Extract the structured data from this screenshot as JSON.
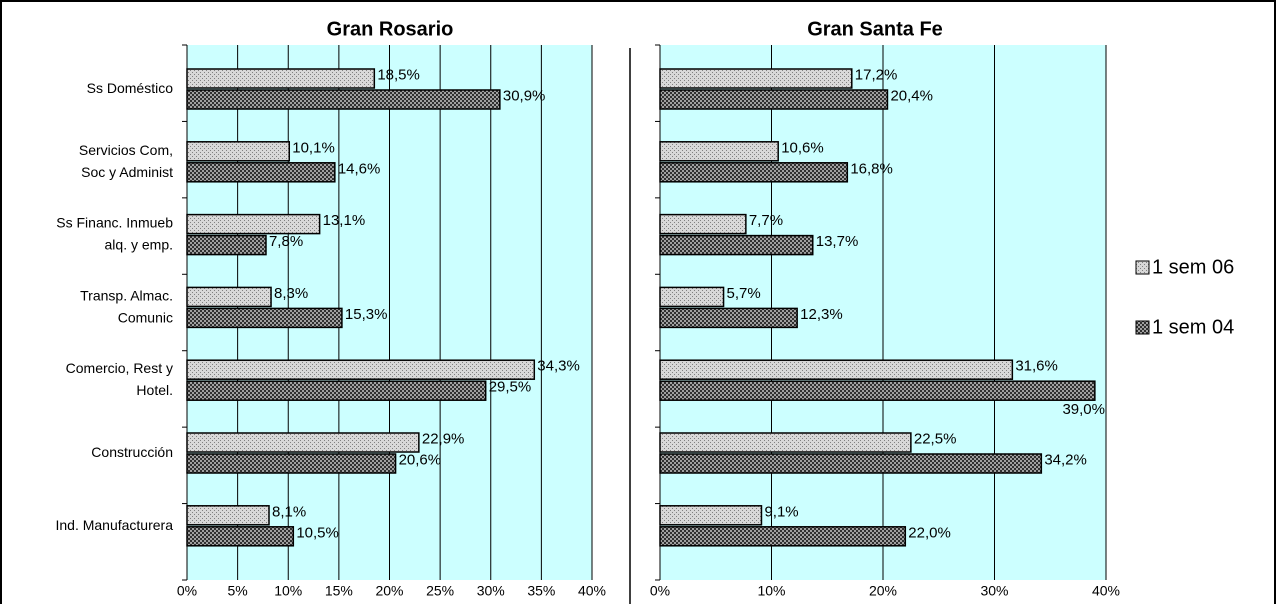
{
  "chart_data": [
    {
      "type": "bar",
      "orientation": "horizontal",
      "title": "Gran Rosario",
      "categories": [
        "Ss Doméstico",
        "Servicios Com,\nSoc y Administ",
        "Ss Financ. Inmueb\nalq. y emp.",
        "Transp. Almac.\nComunic",
        "Comercio, Rest y\nHotel.",
        "Construcción",
        "Ind. Manufacturera"
      ],
      "series": [
        {
          "color": "#c0c0c0",
          "values": [
            18.5,
            10.1,
            13.1,
            8.3,
            34.3,
            22.9,
            8.1
          ],
          "value_labels": [
            "18,5%",
            "10,1%",
            "13,1%",
            "8,3%",
            "34,3%",
            "22,9%",
            "8,1%"
          ]
        },
        {
          "color": "#404040",
          "values": [
            30.9,
            14.6,
            7.8,
            15.3,
            29.5,
            20.6,
            10.5
          ],
          "value_labels": [
            "30,9%",
            "14,6%",
            "7,8%",
            "15,3%",
            "29,5%",
            "20,6%",
            "10,5%"
          ]
        }
      ],
      "xlim": [
        0,
        40
      ],
      "xticks": [
        {
          "value": 0,
          "label": "0%"
        },
        {
          "value": 5,
          "label": "5%"
        },
        {
          "value": 10,
          "label": "10%"
        },
        {
          "value": 15,
          "label": "15%"
        },
        {
          "value": 20,
          "label": "20%"
        },
        {
          "value": 25,
          "label": "25%"
        },
        {
          "value": 30,
          "label": "30%"
        },
        {
          "value": 35,
          "label": "35%"
        },
        {
          "value": 40,
          "label": "40%"
        }
      ],
      "grid": true
    },
    {
      "type": "bar",
      "orientation": "horizontal",
      "title": "Gran Santa Fe",
      "series": [
        {
          "name": "1 sem 06",
          "color": "#c0c0c0",
          "values": [
            17.2,
            10.6,
            7.7,
            5.7,
            31.6,
            22.5,
            9.1
          ],
          "value_labels": [
            "17,2%",
            "10,6%",
            "7,7%",
            "5,7%",
            "31,6%",
            "22,5%",
            "9,1%"
          ]
        },
        {
          "name": "1 sem 04",
          "color": "#404040",
          "values": [
            20.4,
            16.8,
            13.7,
            12.3,
            39.0,
            34.2,
            22.0
          ],
          "value_labels": [
            "20,4%",
            "16,8%",
            "13,7%",
            "12,3%",
            "39,0%",
            "34,2%",
            "22,0%"
          ]
        }
      ],
      "xlim": [
        0,
        40
      ],
      "xticks": [
        {
          "value": 0,
          "label": "0%"
        },
        {
          "value": 10,
          "label": "10%"
        },
        {
          "value": 20,
          "label": "20%"
        },
        {
          "value": 30,
          "label": "30%"
        },
        {
          "value": 40,
          "label": "40%"
        }
      ],
      "grid": true,
      "legend": "right"
    }
  ]
}
